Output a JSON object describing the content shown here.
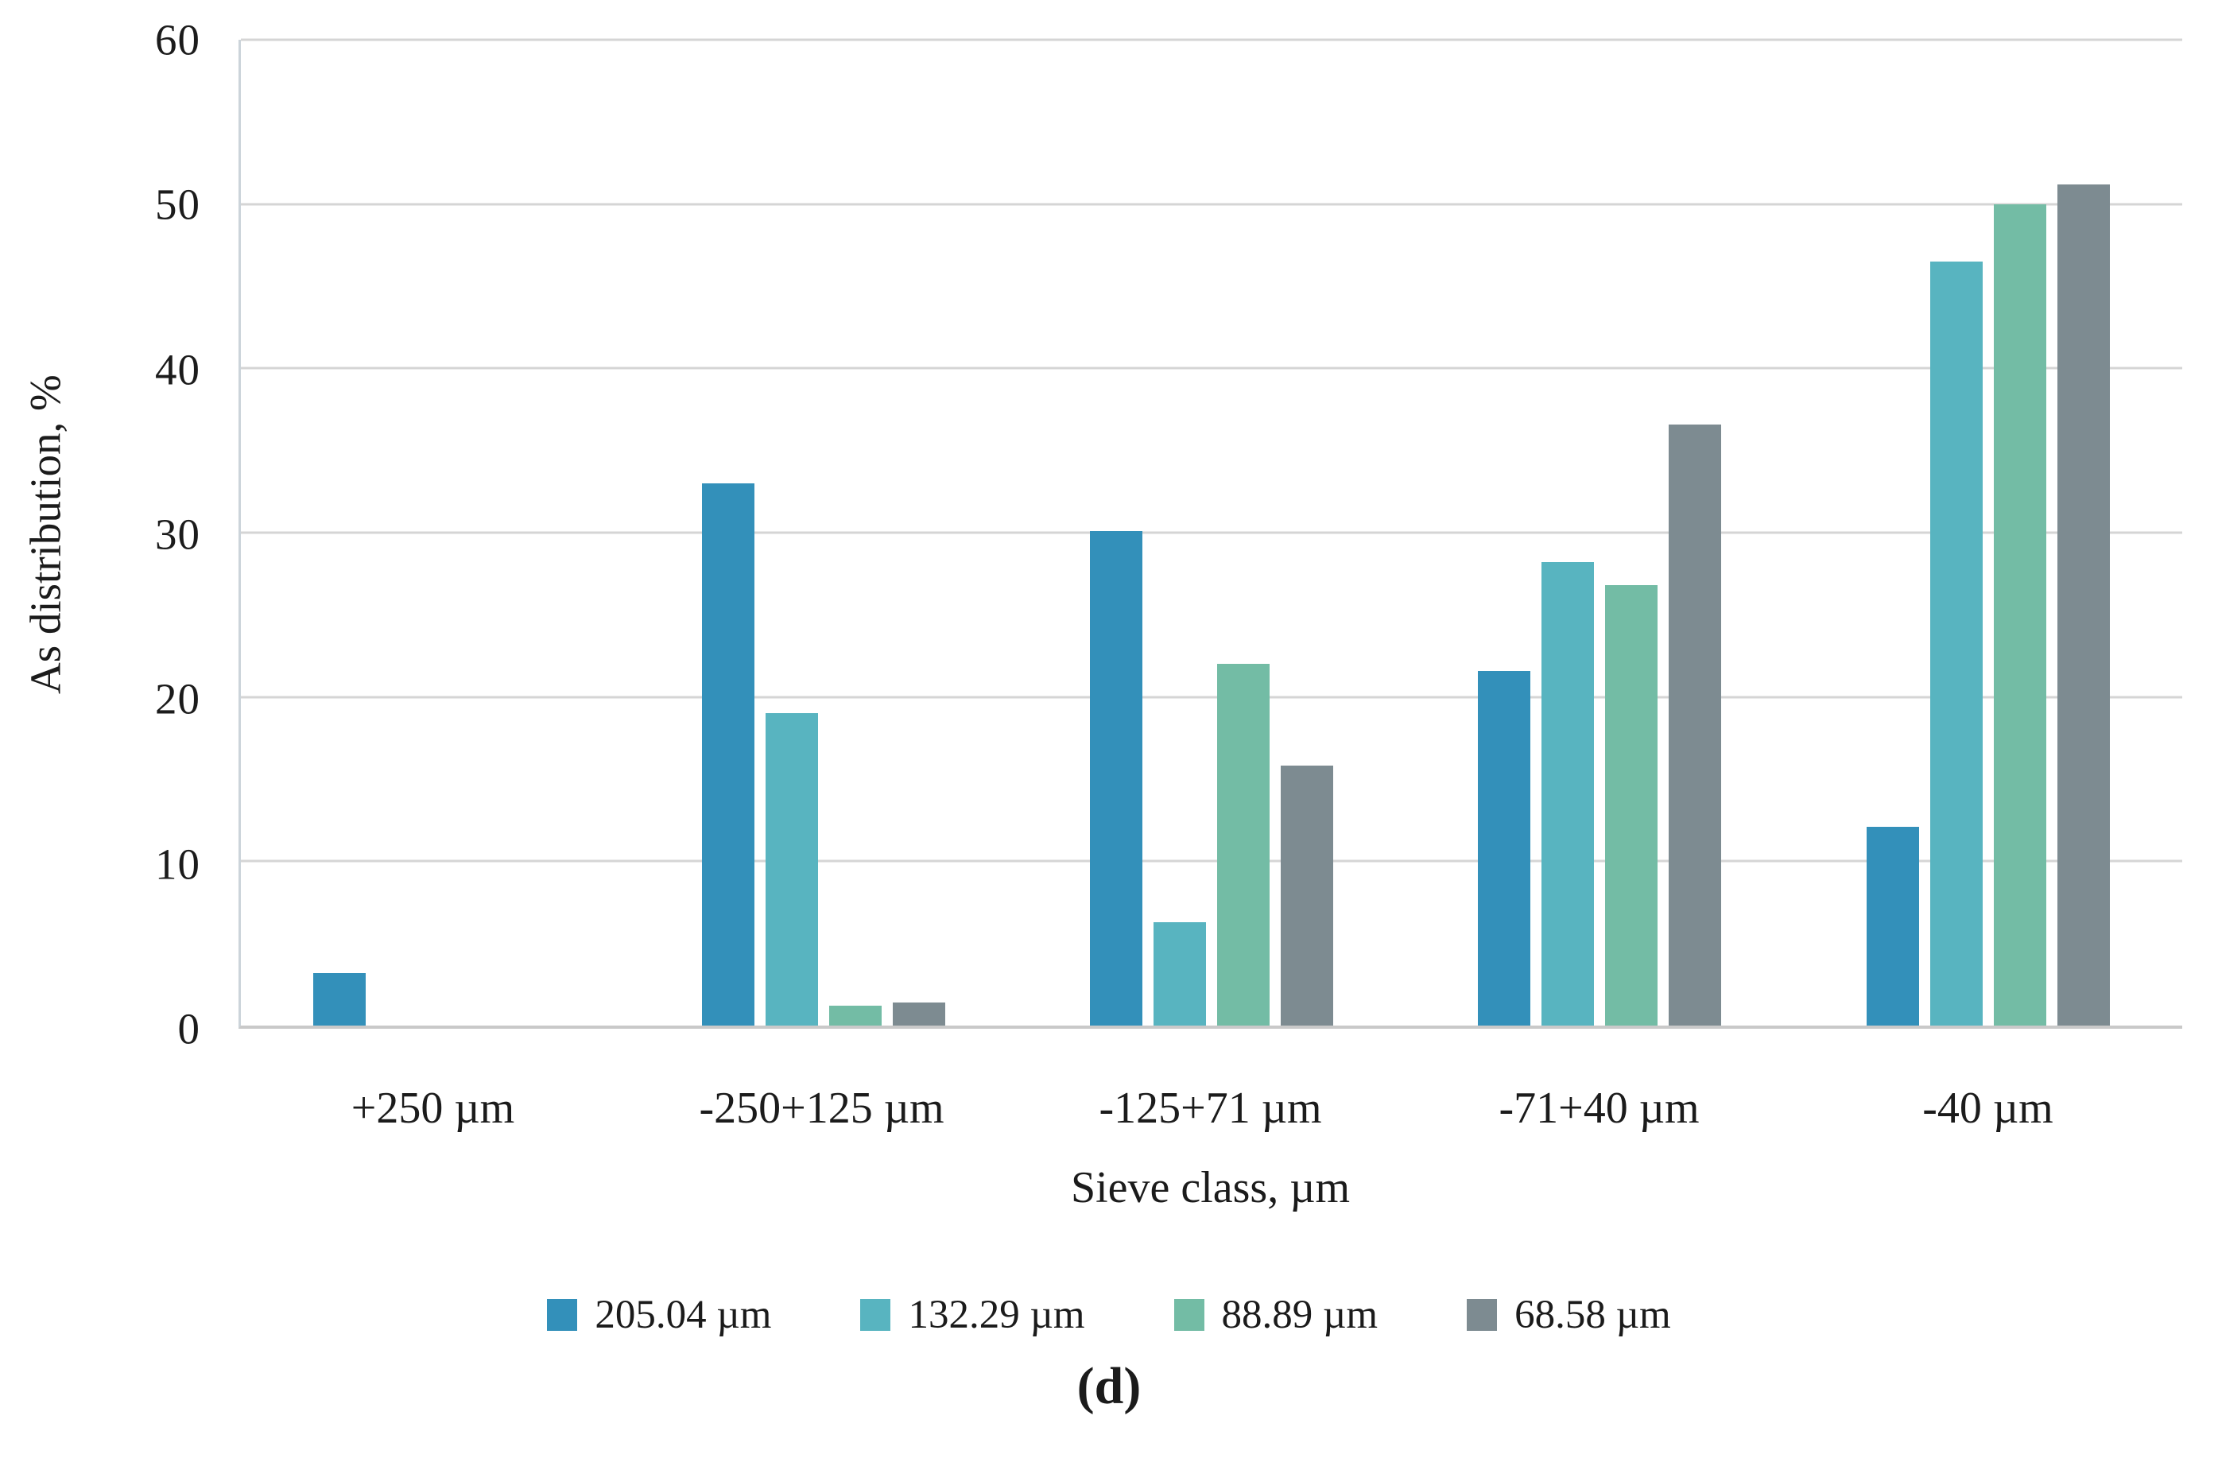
{
  "figure": {
    "caption": "(d)"
  },
  "chart_data": {
    "type": "bar",
    "title": "",
    "xlabel": "Sieve class, µm",
    "ylabel": "As distribution, %",
    "ylim": [
      0,
      60
    ],
    "yticks": [
      0,
      10,
      20,
      30,
      40,
      50,
      60
    ],
    "grid": true,
    "legend_position": "bottom",
    "categories": [
      "+250 µm",
      "-250+125 µm",
      "-125+71 µm",
      "-71+40 µm",
      "-40 µm"
    ],
    "series": [
      {
        "name": "205.04 µm",
        "color": "#3390ba",
        "values": [
          3.2,
          33.0,
          30.1,
          21.6,
          12.1
        ]
      },
      {
        "name": "132.29 µm",
        "color": "#58b4c0",
        "values": [
          0,
          19.0,
          6.3,
          28.2,
          46.5
        ]
      },
      {
        "name": "88.89 µm",
        "color": "#73bca5",
        "values": [
          0,
          1.2,
          22.0,
          26.8,
          50.0
        ]
      },
      {
        "name": "68.58 µm",
        "color": "#7d8b91",
        "values": [
          0,
          1.4,
          15.8,
          36.6,
          51.2
        ]
      }
    ]
  },
  "colors": {
    "gridline": "#d5d5d5",
    "axis_bottom": "#c9c9c9",
    "axis_left": "#ccd4da",
    "text": "#1b1b1b"
  }
}
